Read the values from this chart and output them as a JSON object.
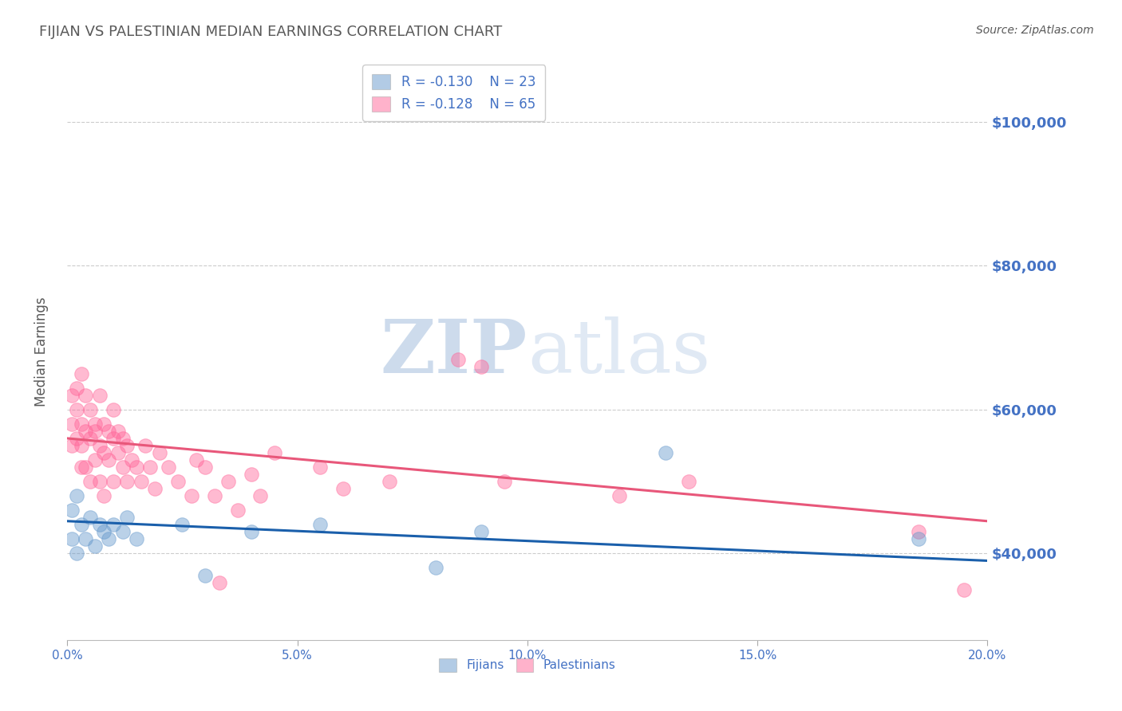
{
  "title": "FIJIAN VS PALESTINIAN MEDIAN EARNINGS CORRELATION CHART",
  "source": "Source: ZipAtlas.com",
  "ylabel": "Median Earnings",
  "xlim": [
    0.0,
    0.2
  ],
  "ylim": [
    28000,
    108000
  ],
  "yticks": [
    40000,
    60000,
    80000,
    100000
  ],
  "ytick_labels": [
    "$40,000",
    "$60,000",
    "$80,000",
    "$100,000"
  ],
  "xticks": [
    0.0,
    0.05,
    0.1,
    0.15,
    0.2
  ],
  "xtick_labels": [
    "0.0%",
    "5.0%",
    "10.0%",
    "15.0%",
    "20.0%"
  ],
  "fijian_color": "#6699CC",
  "palestinian_color": "#FF6699",
  "fijian_R": -0.13,
  "fijian_N": 23,
  "palestinian_R": -0.128,
  "palestinian_N": 65,
  "axis_label_color": "#4472C4",
  "title_color": "#595959",
  "watermark_zip": "ZIP",
  "watermark_atlas": "atlas",
  "legend_labels": [
    "Fijians",
    "Palestinians"
  ],
  "fijians_x": [
    0.001,
    0.001,
    0.002,
    0.002,
    0.003,
    0.004,
    0.005,
    0.006,
    0.007,
    0.008,
    0.009,
    0.01,
    0.012,
    0.013,
    0.015,
    0.025,
    0.03,
    0.04,
    0.055,
    0.08,
    0.09,
    0.13,
    0.185
  ],
  "fijians_y": [
    46000,
    42000,
    48000,
    40000,
    44000,
    42000,
    45000,
    41000,
    44000,
    43000,
    42000,
    44000,
    43000,
    45000,
    42000,
    44000,
    37000,
    43000,
    44000,
    38000,
    43000,
    54000,
    42000
  ],
  "palestinians_x": [
    0.001,
    0.001,
    0.001,
    0.002,
    0.002,
    0.002,
    0.003,
    0.003,
    0.003,
    0.003,
    0.004,
    0.004,
    0.004,
    0.005,
    0.005,
    0.005,
    0.006,
    0.006,
    0.006,
    0.007,
    0.007,
    0.007,
    0.008,
    0.008,
    0.008,
    0.009,
    0.009,
    0.01,
    0.01,
    0.01,
    0.011,
    0.011,
    0.012,
    0.012,
    0.013,
    0.013,
    0.014,
    0.015,
    0.016,
    0.017,
    0.018,
    0.019,
    0.02,
    0.022,
    0.024,
    0.027,
    0.028,
    0.03,
    0.032,
    0.033,
    0.035,
    0.037,
    0.04,
    0.042,
    0.045,
    0.055,
    0.06,
    0.07,
    0.085,
    0.09,
    0.095,
    0.12,
    0.135,
    0.185,
    0.195
  ],
  "palestinians_y": [
    58000,
    55000,
    62000,
    60000,
    56000,
    63000,
    58000,
    55000,
    52000,
    65000,
    57000,
    52000,
    62000,
    56000,
    60000,
    50000,
    58000,
    53000,
    57000,
    55000,
    50000,
    62000,
    54000,
    58000,
    48000,
    57000,
    53000,
    56000,
    50000,
    60000,
    54000,
    57000,
    52000,
    56000,
    50000,
    55000,
    53000,
    52000,
    50000,
    55000,
    52000,
    49000,
    54000,
    52000,
    50000,
    48000,
    53000,
    52000,
    48000,
    36000,
    50000,
    46000,
    51000,
    48000,
    54000,
    52000,
    49000,
    50000,
    67000,
    66000,
    50000,
    48000,
    50000,
    43000,
    35000
  ],
  "fijian_trend_x": [
    0.0,
    0.2
  ],
  "fijian_trend_y": [
    44500,
    39000
  ],
  "palestinian_trend_x": [
    0.0,
    0.2
  ],
  "palestinian_trend_y": [
    56000,
    44500
  ],
  "background_color": "#FFFFFF",
  "grid_color": "#CCCCCC"
}
